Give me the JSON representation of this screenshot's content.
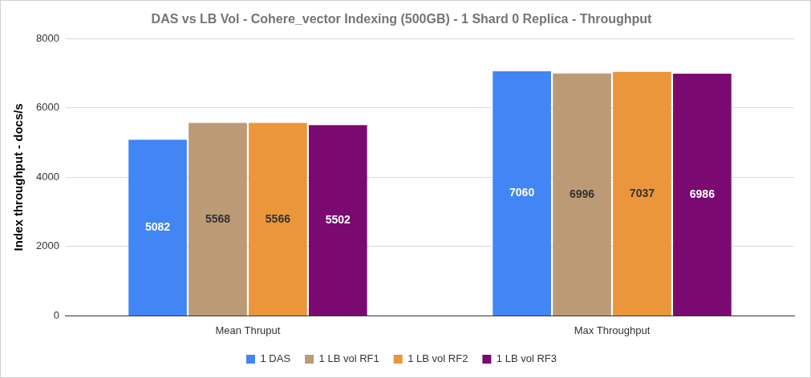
{
  "chart_data": {
    "type": "bar",
    "title": "DAS vs LB Vol - Cohere_vector Indexing (500GB) - 1 Shard 0 Replica - Throughput",
    "y_label": "Index throughput - docs/s",
    "categories": [
      "Mean Thruput",
      "Max Throughput"
    ],
    "series": [
      {
        "name": "1 DAS",
        "color": "#4285f4",
        "values": [
          5082,
          7060
        ]
      },
      {
        "name": "1 LB vol RF1",
        "color": "#bc9a76",
        "values": [
          5568,
          6996
        ]
      },
      {
        "name": "1 LB vol RF2",
        "color": "#eb963a",
        "values": [
          5566,
          7037
        ]
      },
      {
        "name": "1 LB vol RF3",
        "color": "#7a0a72",
        "values": [
          5502,
          6986
        ]
      }
    ],
    "ylim": [
      0,
      8000
    ],
    "yticks": [
      0,
      2000,
      4000,
      6000,
      8000
    ],
    "grid": true,
    "legend": "bottom",
    "data_labels": true
  }
}
